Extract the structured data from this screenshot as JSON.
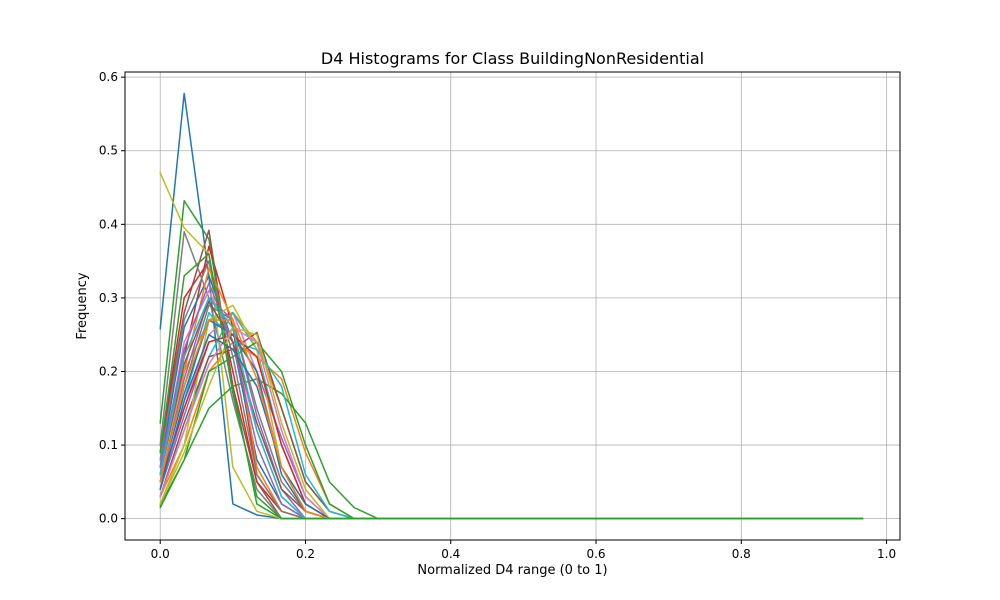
{
  "chart_data": {
    "type": "line",
    "title": "D4 Histograms for Class BuildingNonResidential",
    "xlabel": "Normalized D4 range (0 to 1)",
    "ylabel": "Frequency",
    "xlim": [
      -0.0485,
      1.0185
    ],
    "ylim": [
      -0.029,
      0.607
    ],
    "xticks": [
      0.0,
      0.2,
      0.4,
      0.6,
      0.8,
      1.0
    ],
    "xtick_labels": [
      "0.0",
      "0.2",
      "0.4",
      "0.6",
      "0.8",
      "1.0"
    ],
    "yticks": [
      0.0,
      0.1,
      0.2,
      0.3,
      0.4,
      0.5,
      0.6
    ],
    "ytick_labels": [
      "0.0",
      "0.1",
      "0.2",
      "0.3",
      "0.4",
      "0.5",
      "0.6"
    ],
    "grid": true,
    "legend": "none",
    "x": [
      0.0,
      0.033,
      0.067,
      0.1,
      0.133,
      0.167,
      0.2,
      0.233,
      0.267,
      0.3,
      0.333,
      0.367,
      0.4,
      0.433,
      0.467,
      0.5,
      0.533,
      0.567,
      0.6,
      0.633,
      0.667,
      0.7,
      0.733,
      0.767,
      0.8,
      0.833,
      0.867,
      0.9,
      0.933,
      0.967
    ],
    "series": [
      {
        "color": "#1f77b4",
        "head": [
          0.258,
          0.578,
          0.33,
          0.02,
          0.005,
          0.0
        ]
      },
      {
        "color": "#ff7f0e",
        "head": [
          0.07,
          0.2,
          0.27,
          0.28,
          0.24,
          0.15,
          0.05,
          0.01,
          0.0
        ]
      },
      {
        "color": "#2ca02c",
        "head": [
          0.13,
          0.432,
          0.38,
          0.18,
          0.02,
          0.0
        ]
      },
      {
        "color": "#d62728",
        "head": [
          0.06,
          0.22,
          0.37,
          0.26,
          0.06,
          0.01,
          0.0
        ]
      },
      {
        "color": "#9467bd",
        "head": [
          0.05,
          0.19,
          0.3,
          0.27,
          0.14,
          0.04,
          0.0
        ]
      },
      {
        "color": "#8c564b",
        "head": [
          0.09,
          0.28,
          0.392,
          0.18,
          0.05,
          0.0
        ]
      },
      {
        "color": "#e377c2",
        "head": [
          0.04,
          0.15,
          0.25,
          0.28,
          0.2,
          0.07,
          0.01,
          0.0
        ]
      },
      {
        "color": "#7f7f7f",
        "head": [
          0.1,
          0.39,
          0.3,
          0.16,
          0.04,
          0.0
        ]
      },
      {
        "color": "#bcbd22",
        "head": [
          0.47,
          0.395,
          0.36,
          0.07,
          0.01,
          0.0
        ]
      },
      {
        "color": "#17becf",
        "head": [
          0.03,
          0.12,
          0.22,
          0.28,
          0.23,
          0.1,
          0.02,
          0.0
        ]
      },
      {
        "color": "#1f77b4",
        "head": [
          0.07,
          0.26,
          0.33,
          0.24,
          0.08,
          0.02,
          0.0
        ]
      },
      {
        "color": "#ff7f0e",
        "head": [
          0.03,
          0.1,
          0.2,
          0.24,
          0.22,
          0.19,
          0.09,
          0.02,
          0.0
        ]
      },
      {
        "color": "#2ca02c",
        "head": [
          0.018,
          0.08,
          0.15,
          0.18,
          0.19,
          0.17,
          0.13,
          0.05,
          0.015,
          0.0
        ]
      },
      {
        "color": "#d62728",
        "head": [
          0.09,
          0.3,
          0.35,
          0.2,
          0.05,
          0.01,
          0.0
        ]
      },
      {
        "color": "#9467bd",
        "head": [
          0.04,
          0.14,
          0.24,
          0.25,
          0.2,
          0.11,
          0.03,
          0.0
        ]
      },
      {
        "color": "#8c564b",
        "head": [
          0.03,
          0.13,
          0.22,
          0.23,
          0.253,
          0.15,
          0.05,
          0.01,
          0.0
        ]
      },
      {
        "color": "#e377c2",
        "head": [
          0.06,
          0.24,
          0.31,
          0.24,
          0.12,
          0.03,
          0.0
        ]
      },
      {
        "color": "#7f7f7f",
        "head": [
          0.05,
          0.18,
          0.29,
          0.27,
          0.15,
          0.05,
          0.01,
          0.0
        ]
      },
      {
        "color": "#bcbd22",
        "head": [
          0.02,
          0.1,
          0.27,
          0.29,
          0.23,
          0.07,
          0.02,
          0.0
        ]
      },
      {
        "color": "#17becf",
        "head": [
          0.04,
          0.16,
          0.28,
          0.24,
          0.23,
          0.18,
          0.06,
          0.01,
          0.0
        ]
      },
      {
        "color": "#1f77b4",
        "head": [
          0.05,
          0.17,
          0.27,
          0.25,
          0.2,
          0.06,
          0.01,
          0.0
        ]
      },
      {
        "color": "#ff7f0e",
        "head": [
          0.06,
          0.2,
          0.34,
          0.27,
          0.07,
          0.01,
          0.0
        ]
      },
      {
        "color": "#2ca02c",
        "head": [
          0.015,
          0.08,
          0.2,
          0.22,
          0.24,
          0.2,
          0.1,
          0.02,
          0.0
        ]
      },
      {
        "color": "#d62728",
        "head": [
          0.05,
          0.15,
          0.24,
          0.25,
          0.22,
          0.1,
          0.02,
          0.0
        ]
      },
      {
        "color": "#9467bd",
        "head": [
          0.07,
          0.23,
          0.32,
          0.24,
          0.1,
          0.02,
          0.0
        ]
      },
      {
        "color": "#8c564b",
        "head": [
          0.06,
          0.21,
          0.295,
          0.24,
          0.13,
          0.04,
          0.01,
          0.0
        ]
      },
      {
        "color": "#e377c2",
        "head": [
          0.03,
          0.12,
          0.21,
          0.26,
          0.24,
          0.12,
          0.03,
          0.0
        ]
      },
      {
        "color": "#7f7f7f",
        "head": [
          0.08,
          0.27,
          0.35,
          0.22,
          0.06,
          0.01,
          0.0
        ]
      },
      {
        "color": "#bcbd22",
        "head": [
          0.02,
          0.09,
          0.18,
          0.26,
          0.25,
          0.13,
          0.04,
          0.0
        ]
      },
      {
        "color": "#17becf",
        "head": [
          0.06,
          0.22,
          0.3,
          0.26,
          0.12,
          0.03,
          0.0
        ]
      },
      {
        "color": "#1f77b4",
        "head": [
          0.04,
          0.16,
          0.25,
          0.23,
          0.18,
          0.07,
          0.02,
          0.0
        ]
      },
      {
        "color": "#ff7f0e",
        "head": [
          0.05,
          0.18,
          0.27,
          0.27,
          0.19,
          0.07,
          0.01,
          0.0
        ]
      },
      {
        "color": "#2ca02c",
        "head": [
          0.09,
          0.33,
          0.36,
          0.17,
          0.03,
          0.0
        ]
      }
    ]
  }
}
